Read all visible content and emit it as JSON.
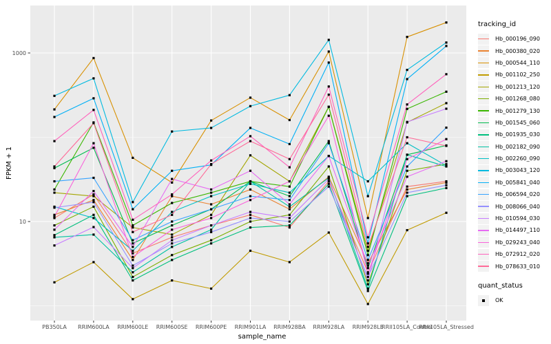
{
  "chart_data": {
    "type": "line",
    "title": "",
    "xlabel": "sample_name",
    "ylabel": "FPKM + 1",
    "y_scale": "log10",
    "y_tick_labels": [
      "1000",
      "10"
    ],
    "y_tick_values": [
      1000,
      10
    ],
    "y_minor_values": [
      100,
      1
    ],
    "ylim": [
      0.7,
      3500
    ],
    "grid": true,
    "legend_position": "right",
    "legend_title": "tracking_id",
    "legend2_title": "quant_status",
    "legend2_items": [
      {
        "label": "OK",
        "marker": "black-point"
      }
    ],
    "panel_bg": "#EBEBEB",
    "grid_color": "#FFFFFF",
    "axis_text_color": "#4D4D4D",
    "axis_title_color": "#000000",
    "point_color": "#000000",
    "categories": [
      "PB350LA",
      "RRIM600LA",
      "RRIM600LE",
      "RRIM600SE",
      "RRIM600PE",
      "RRIM901LA",
      "RRIM928BA",
      "RRIM928LA",
      "RRIM928LE",
      "RRII105LA_Control",
      "RRII105LA_Stressed"
    ],
    "series": [
      {
        "name": "Hb_000196_090",
        "color": "#F8766D",
        "values": [
          11,
          21,
          4.2,
          6.5,
          9,
          12,
          8.5,
          30,
          2.5,
          26,
          30
        ]
      },
      {
        "name": "Hb_000380_020",
        "color": "#EA8331",
        "values": [
          12,
          18,
          3.5,
          20,
          16,
          24,
          14,
          34,
          3.2,
          24,
          29
        ]
      },
      {
        "name": "Hb_000544_110",
        "color": "#D89000",
        "values": [
          214,
          870,
          57,
          29,
          158,
          295,
          160,
          1040,
          11,
          1550,
          2300
        ]
      },
      {
        "name": "Hb_001102_250",
        "color": "#C09B00",
        "values": [
          1.9,
          3.3,
          1.2,
          2.0,
          1.6,
          4.5,
          3.3,
          7.4,
          1.05,
          7.9,
          12.7
        ]
      },
      {
        "name": "Hb_001213_120",
        "color": "#A3A500",
        "values": [
          22,
          20,
          8.5,
          7,
          12,
          61,
          30,
          230,
          4.5,
          150,
          254
        ]
      },
      {
        "name": "Hb_001268_080",
        "color": "#7CAE00",
        "values": [
          9,
          15,
          2.2,
          4,
          6,
          10,
          12,
          45,
          1.8,
          40,
          48
        ]
      },
      {
        "name": "Hb_001279_130",
        "color": "#39B600",
        "values": [
          24,
          150,
          9,
          16.6,
          22,
          30,
          26,
          230,
          4.0,
          217,
          347
        ]
      },
      {
        "name": "Hb_001545_060",
        "color": "#00BB4E",
        "values": [
          43,
          75,
          5.5,
          9,
          14,
          30,
          20,
          90,
          2.8,
          62,
          80
        ]
      },
      {
        "name": "Hb_001935_030",
        "color": "#00BF7D",
        "values": [
          6.9,
          12,
          2.0,
          3.5,
          5.5,
          8.5,
          9,
          28,
          1.5,
          20,
          25
        ]
      },
      {
        "name": "Hb_002182_090",
        "color": "#00C1A3",
        "values": [
          6.5,
          7,
          2.5,
          5,
          8,
          30,
          15,
          33,
          1.6,
          62,
          45
        ]
      },
      {
        "name": "Hb_002260_090",
        "color": "#00BFC4",
        "values": [
          15,
          11,
          4.5,
          13,
          20,
          28,
          22,
          60,
          30,
          85,
          46
        ]
      },
      {
        "name": "Hb_003043_120",
        "color": "#00BAE0",
        "values": [
          310,
          500,
          17,
          117,
          129,
          234,
          316,
          1430,
          20,
          630,
          1330
        ]
      },
      {
        "name": "Hb_005841_040",
        "color": "#00B0F6",
        "values": [
          174,
          290,
          14,
          40,
          47,
          129,
          83,
          770,
          5.5,
          490,
          1210
        ]
      },
      {
        "name": "Hb_006594_020",
        "color": "#35A2FF",
        "values": [
          30,
          33,
          6,
          10,
          14,
          20,
          18,
          85,
          3.5,
          45,
          130
        ]
      },
      {
        "name": "Hb_008066_040",
        "color": "#9590FF",
        "values": [
          14.6,
          17,
          3.0,
          5.5,
          7.5,
          11,
          10,
          26,
          2.2,
          22,
          27
        ]
      },
      {
        "name": "Hb_010594_030",
        "color": "#C77CFF",
        "values": [
          5.2,
          8.6,
          2.8,
          6,
          9,
          13,
          11,
          32,
          2.0,
          152,
          218
        ]
      },
      {
        "name": "Hb_014497_110",
        "color": "#E76BF3",
        "values": [
          8,
          23,
          5,
          32,
          24,
          40,
          16,
          60,
          3.0,
          34,
          52
        ]
      },
      {
        "name": "Hb_029243_040",
        "color": "#FA62DB",
        "values": [
          11.4,
          85,
          3.8,
          8,
          11,
          18,
          30,
          180,
          2.4,
          55,
          95
        ]
      },
      {
        "name": "Hb_072912_020",
        "color": "#FF62BC",
        "values": [
          90,
          211,
          10.5,
          21,
          53,
          103,
          44,
          400,
          6.5,
          245,
          560
        ]
      },
      {
        "name": "Hb_078633_010",
        "color": "#FF6A98",
        "values": [
          45,
          147,
          7.5,
          12,
          48,
          90,
          55,
          320,
          5.0,
          100,
          79
        ]
      }
    ]
  }
}
